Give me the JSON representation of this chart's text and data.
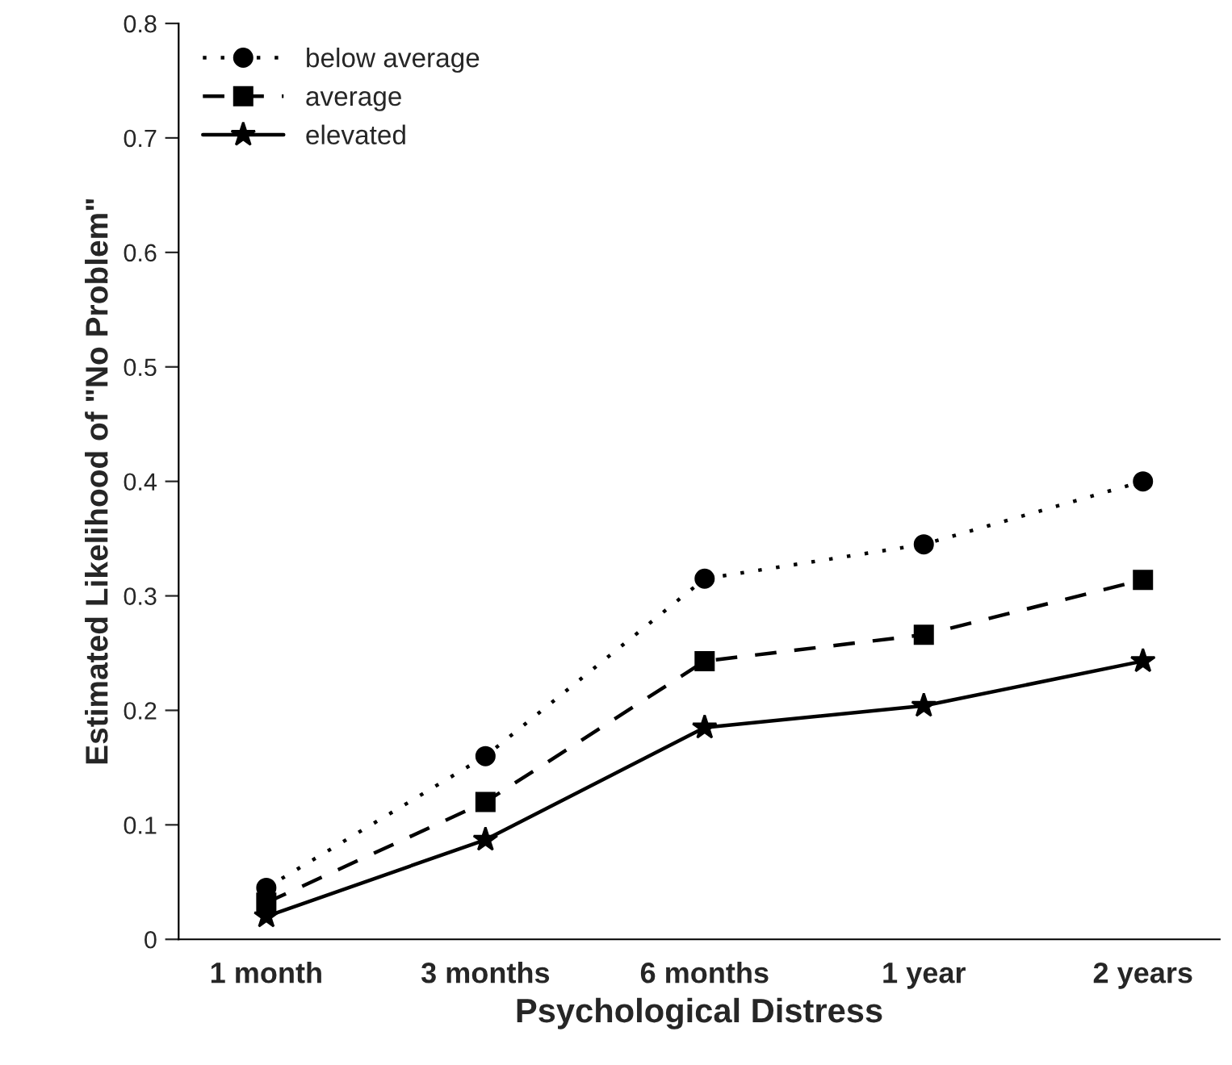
{
  "chart_data": {
    "type": "line",
    "xlabel": "Psychological Distress",
    "ylabel": "Estimated Likelihood of \"No Problem\"",
    "categories": [
      "1 month",
      "3 months",
      "6 months",
      "1 year",
      "2 years"
    ],
    "series": [
      {
        "name": "below average",
        "color": "#000000",
        "marker": "circle",
        "line_style": "dotted",
        "values": [
          0.045,
          0.16,
          0.315,
          0.345,
          0.4
        ]
      },
      {
        "name": "average",
        "color": "#000000",
        "marker": "square",
        "line_style": "dashed",
        "values": [
          0.032,
          0.12,
          0.243,
          0.266,
          0.314
        ]
      },
      {
        "name": "elevated",
        "color": "#000000",
        "marker": "star",
        "line_style": "solid",
        "values": [
          0.02,
          0.087,
          0.185,
          0.204,
          0.243
        ]
      }
    ],
    "ylim": [
      0,
      0.8
    ],
    "yticks": [
      {
        "value": 0,
        "label": "0"
      },
      0.1,
      0.2,
      0.3,
      0.4,
      0.5,
      0.6,
      0.7,
      0.8
    ],
    "grid": false,
    "legend": "top left"
  }
}
